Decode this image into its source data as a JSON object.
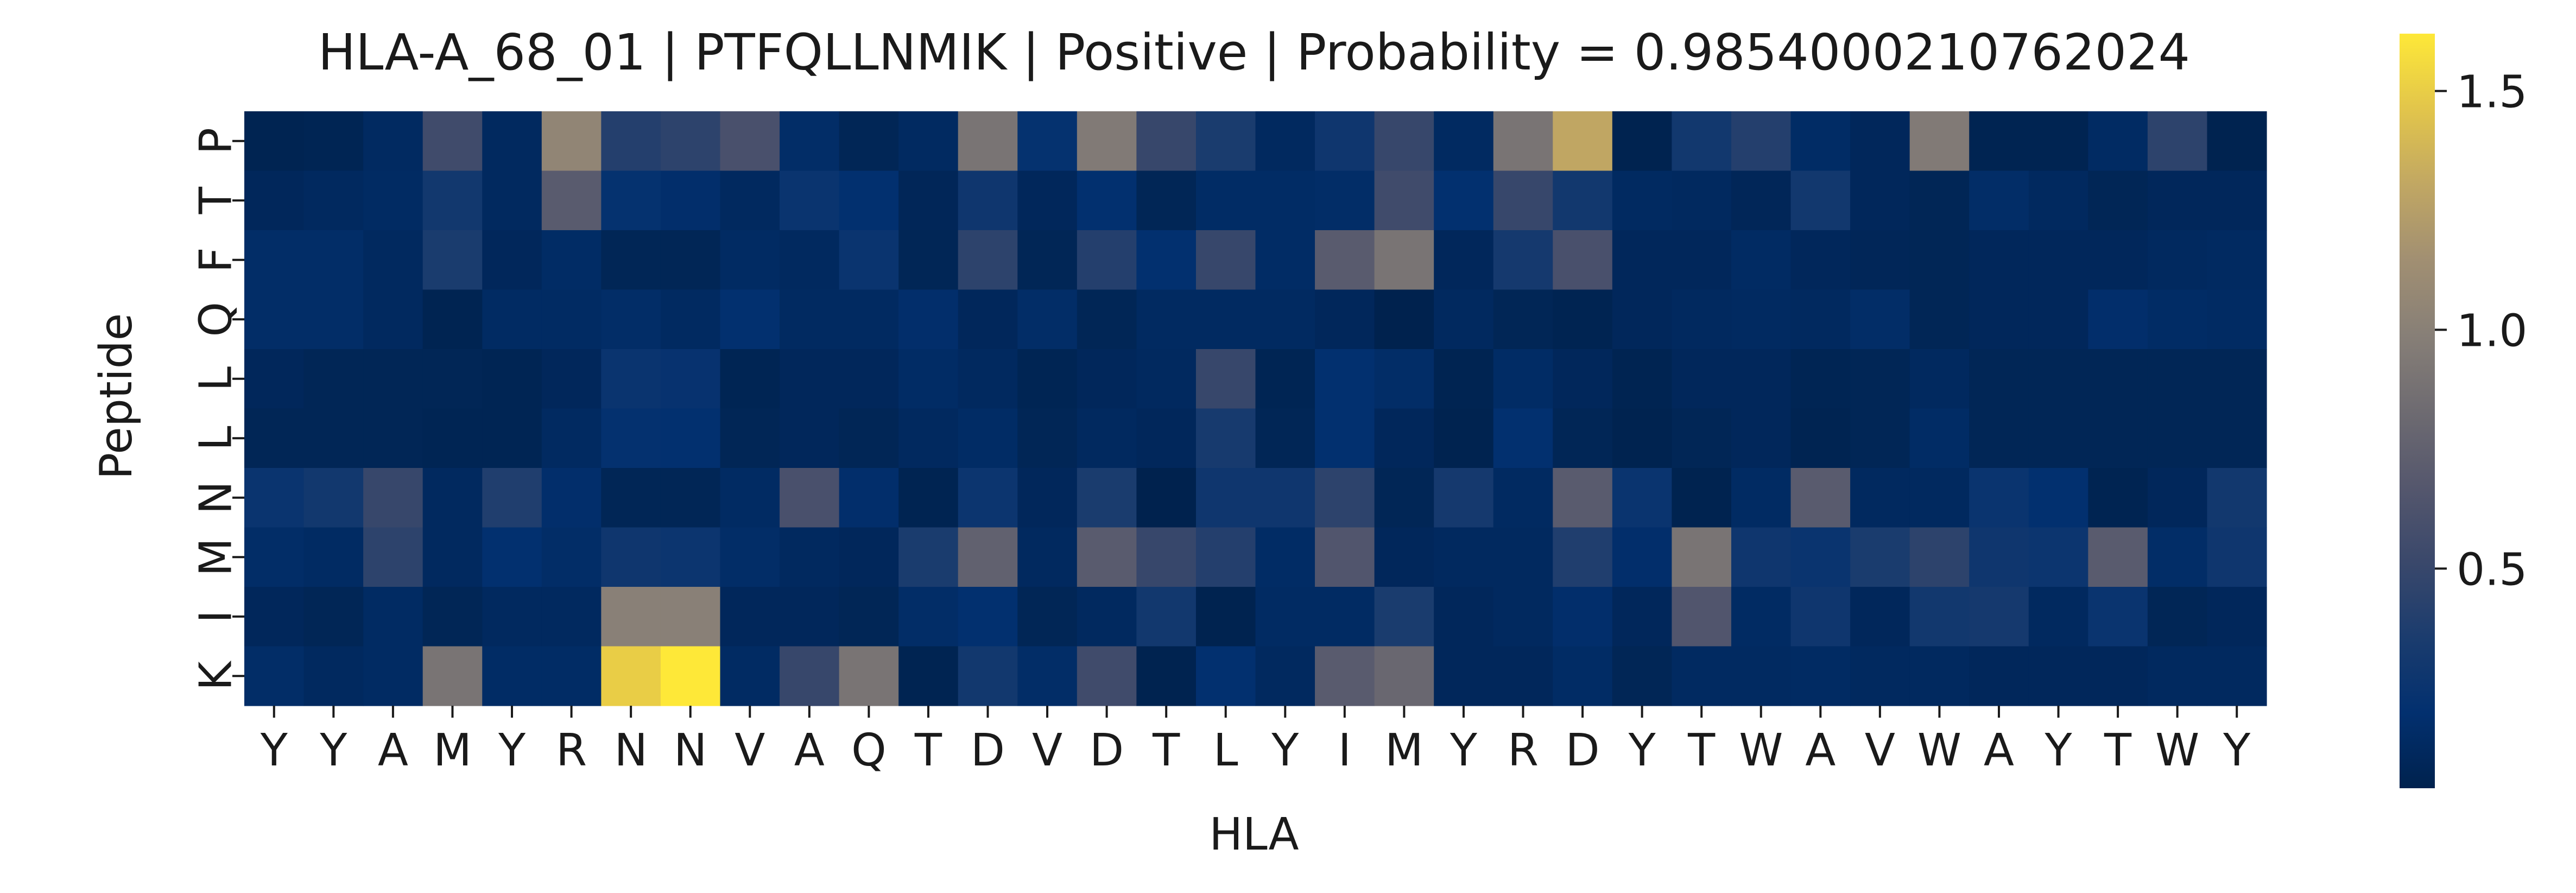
{
  "chart_data": {
    "type": "heatmap",
    "title": "HLA-A_68_01 | PTFQLLNMIK | Positive | Probability = 0.9854000210762024",
    "xlabel": "HLA",
    "ylabel": "Peptide",
    "x_categories": [
      "Y",
      "Y",
      "A",
      "M",
      "Y",
      "R",
      "N",
      "N",
      "V",
      "A",
      "Q",
      "T",
      "D",
      "V",
      "D",
      "T",
      "L",
      "Y",
      "I",
      "M",
      "Y",
      "R",
      "D",
      "Y",
      "T",
      "W",
      "A",
      "V",
      "W",
      "A",
      "Y",
      "T",
      "W",
      "Y"
    ],
    "y_categories": [
      "P",
      "T",
      "F",
      "Q",
      "L",
      "L",
      "N",
      "M",
      "I",
      "K"
    ],
    "values": [
      [
        0.06,
        0.07,
        0.13,
        0.55,
        0.12,
        1.05,
        0.4,
        0.45,
        0.6,
        0.16,
        0.08,
        0.13,
        0.9,
        0.22,
        0.95,
        0.5,
        0.35,
        0.12,
        0.28,
        0.5,
        0.13,
        0.9,
        1.3,
        0.05,
        0.3,
        0.4,
        0.15,
        0.1,
        0.95,
        0.06,
        0.06,
        0.14,
        0.45,
        0.05
      ],
      [
        0.1,
        0.12,
        0.14,
        0.3,
        0.12,
        0.7,
        0.22,
        0.18,
        0.12,
        0.25,
        0.2,
        0.09,
        0.28,
        0.1,
        0.2,
        0.08,
        0.15,
        0.15,
        0.16,
        0.55,
        0.2,
        0.5,
        0.3,
        0.13,
        0.12,
        0.09,
        0.3,
        0.1,
        0.08,
        0.16,
        0.12,
        0.08,
        0.1,
        0.1
      ],
      [
        0.16,
        0.16,
        0.12,
        0.35,
        0.1,
        0.15,
        0.08,
        0.08,
        0.14,
        0.12,
        0.25,
        0.08,
        0.45,
        0.08,
        0.4,
        0.2,
        0.5,
        0.15,
        0.7,
        0.9,
        0.1,
        0.32,
        0.6,
        0.1,
        0.1,
        0.14,
        0.1,
        0.09,
        0.08,
        0.1,
        0.1,
        0.1,
        0.12,
        0.13
      ],
      [
        0.16,
        0.16,
        0.12,
        0.06,
        0.14,
        0.14,
        0.16,
        0.13,
        0.2,
        0.13,
        0.13,
        0.18,
        0.1,
        0.16,
        0.08,
        0.13,
        0.13,
        0.13,
        0.1,
        0.04,
        0.12,
        0.08,
        0.06,
        0.1,
        0.12,
        0.13,
        0.12,
        0.16,
        0.08,
        0.1,
        0.1,
        0.18,
        0.15,
        0.14
      ],
      [
        0.1,
        0.08,
        0.08,
        0.08,
        0.07,
        0.1,
        0.25,
        0.23,
        0.07,
        0.1,
        0.1,
        0.15,
        0.12,
        0.07,
        0.1,
        0.12,
        0.5,
        0.07,
        0.2,
        0.16,
        0.06,
        0.15,
        0.1,
        0.06,
        0.1,
        0.1,
        0.07,
        0.08,
        0.12,
        0.08,
        0.08,
        0.08,
        0.08,
        0.08
      ],
      [
        0.08,
        0.08,
        0.08,
        0.07,
        0.07,
        0.13,
        0.21,
        0.2,
        0.08,
        0.1,
        0.08,
        0.12,
        0.15,
        0.08,
        0.12,
        0.1,
        0.33,
        0.08,
        0.2,
        0.1,
        0.05,
        0.2,
        0.08,
        0.05,
        0.08,
        0.1,
        0.06,
        0.08,
        0.15,
        0.08,
        0.08,
        0.08,
        0.08,
        0.08
      ],
      [
        0.25,
        0.3,
        0.5,
        0.12,
        0.38,
        0.18,
        0.08,
        0.08,
        0.14,
        0.6,
        0.18,
        0.06,
        0.26,
        0.1,
        0.35,
        0.04,
        0.28,
        0.28,
        0.45,
        0.08,
        0.32,
        0.13,
        0.7,
        0.25,
        0.05,
        0.14,
        0.7,
        0.12,
        0.12,
        0.25,
        0.2,
        0.06,
        0.1,
        0.3
      ],
      [
        0.16,
        0.14,
        0.45,
        0.12,
        0.2,
        0.16,
        0.28,
        0.26,
        0.16,
        0.12,
        0.1,
        0.35,
        0.75,
        0.12,
        0.7,
        0.5,
        0.4,
        0.15,
        0.65,
        0.1,
        0.12,
        0.12,
        0.38,
        0.18,
        0.9,
        0.28,
        0.25,
        0.35,
        0.45,
        0.28,
        0.26,
        0.7,
        0.16,
        0.28
      ],
      [
        0.1,
        0.08,
        0.14,
        0.08,
        0.12,
        0.12,
        1.0,
        1.0,
        0.1,
        0.1,
        0.08,
        0.16,
        0.2,
        0.08,
        0.12,
        0.3,
        0.05,
        0.14,
        0.14,
        0.35,
        0.1,
        0.12,
        0.18,
        0.1,
        0.65,
        0.14,
        0.28,
        0.1,
        0.3,
        0.32,
        0.12,
        0.25,
        0.08,
        0.1
      ],
      [
        0.16,
        0.12,
        0.14,
        0.9,
        0.15,
        0.15,
        1.5,
        1.62,
        0.14,
        0.5,
        0.9,
        0.06,
        0.3,
        0.16,
        0.55,
        0.05,
        0.2,
        0.12,
        0.7,
        0.8,
        0.1,
        0.1,
        0.15,
        0.08,
        0.13,
        0.13,
        0.14,
        0.12,
        0.12,
        0.1,
        0.1,
        0.1,
        0.12,
        0.12
      ]
    ],
    "colorbar": {
      "range": [
        0.04,
        1.62
      ],
      "ticks": [
        0.5,
        1.0,
        1.5
      ],
      "tick_labels": [
        "0.5",
        "1.0",
        "1.5"
      ],
      "colormap": "cividis"
    },
    "grid": false,
    "legend": "colorbar-right"
  }
}
